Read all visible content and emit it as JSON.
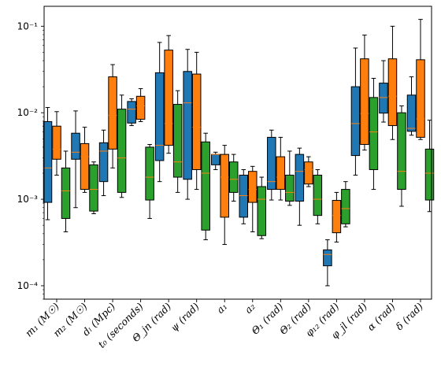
{
  "chart_data": {
    "type": "boxplot",
    "title": "",
    "xlabel": "",
    "ylabel": "",
    "yscale": "log",
    "ylim": [
      7e-05,
      0.17
    ],
    "y_ticks": [
      {
        "value": 0.1,
        "label": "10⁻¹"
      },
      {
        "value": 0.01,
        "label": "10⁻²"
      },
      {
        "value": 0.001,
        "label": "10⁻³"
      },
      {
        "value": 0.0001,
        "label": "10⁻⁴"
      }
    ],
    "categories": [
      "m₁ (M☉)",
      "m₂ (M☉)",
      "dₗ (Mpc)",
      "t₀ (seconds)",
      "Θ_jn (rad)",
      "ψ (rad)",
      "a₁",
      "a₂",
      "Θ₁ (rad)",
      "Θ₂ (rad)",
      "φ₁₂ (rad)",
      "φ_jl (rad)",
      "α (rad)",
      "δ (rad)"
    ],
    "colors": {
      "blue": "#1f77b4",
      "orange": "#ff7f0e",
      "green": "#2ca02c",
      "median": "#ff7f0e"
    },
    "series": [
      {
        "color": "blue",
        "boxes": [
          {
            "min": 0.00058,
            "q1": 0.00092,
            "median": 0.0023,
            "q3": 0.0079,
            "max": 0.0115
          },
          {
            "min": 0.0008,
            "q1": 0.0029,
            "median": 0.0035,
            "q3": 0.0058,
            "max": 0.0105
          },
          {
            "min": 0.0011,
            "q1": 0.0016,
            "median": 0.0036,
            "q3": 0.0045,
            "max": 0.0063
          },
          {
            "min": 0.0071,
            "q1": 0.0076,
            "median": 0.011,
            "q3": 0.0135,
            "max": 0.0145
          },
          {
            "min": 0.0016,
            "q1": 0.0028,
            "median": 0.0042,
            "q3": 0.029,
            "max": 0.065
          },
          {
            "min": 0.001,
            "q1": 0.0017,
            "median": 0.013,
            "q3": 0.03,
            "max": 0.054
          },
          {
            "min": 0.0022,
            "q1": 0.0025,
            "median": 0.0033,
            "q3": 0.0033,
            "max": 0.0035
          },
          {
            "min": 0.00052,
            "q1": 0.00062,
            "median": 0.0011,
            "q3": 0.0019,
            "max": 0.0022
          },
          {
            "min": 0.00098,
            "q1": 0.0013,
            "median": 0.0016,
            "q3": 0.0052,
            "max": 0.0063
          },
          {
            "min": 0.0005,
            "q1": 0.00095,
            "median": 0.0021,
            "q3": 0.0033,
            "max": 0.0039
          },
          {
            "min": 0.0001,
            "q1": 0.00017,
            "median": 0.00023,
            "q3": 0.00026,
            "max": 0.00034
          },
          {
            "min": 0.0019,
            "q1": 0.0032,
            "median": 0.0075,
            "q3": 0.02,
            "max": 0.056
          },
          {
            "min": 0.0078,
            "q1": 0.0099,
            "median": 0.015,
            "q3": 0.022,
            "max": 0.04
          },
          {
            "min": 0.0055,
            "q1": 0.0061,
            "median": 0.0066,
            "q3": 0.016,
            "max": 0.026
          }
        ]
      },
      {
        "color": "orange",
        "boxes": [
          {
            "min": 0.0019,
            "q1": 0.0029,
            "median": 0.0038,
            "q3": 0.007,
            "max": 0.0103
          },
          {
            "min": 0.0012,
            "q1": 0.0013,
            "median": 0.0031,
            "q3": 0.0044,
            "max": 0.0068
          },
          {
            "min": 0.0023,
            "q1": 0.0038,
            "median": 0.0093,
            "q3": 0.026,
            "max": 0.036
          },
          {
            "min": 0.0079,
            "q1": 0.0084,
            "median": 0.012,
            "q3": 0.0155,
            "max": 0.019
          },
          {
            "min": 0.0034,
            "q1": 0.0042,
            "median": 0.0075,
            "q3": 0.053,
            "max": 0.078
          },
          {
            "min": 0.0013,
            "q1": 0.0022,
            "median": 0.0068,
            "q3": 0.028,
            "max": 0.05
          },
          {
            "min": 0.0003,
            "q1": 0.00062,
            "median": 0.0018,
            "q3": 0.0033,
            "max": 0.0042
          },
          {
            "min": 0.00042,
            "q1": 0.00092,
            "median": 0.0013,
            "q3": 0.0021,
            "max": 0.0024
          },
          {
            "min": 0.00098,
            "q1": 0.0013,
            "median": 0.0018,
            "q3": 0.0031,
            "max": 0.0052
          },
          {
            "min": 0.0014,
            "q1": 0.0015,
            "median": 0.0022,
            "q3": 0.0027,
            "max": 0.0031
          },
          {
            "min": 0.00032,
            "q1": 0.00041,
            "median": 0.00065,
            "q3": 0.00097,
            "max": 0.0012
          },
          {
            "min": 0.0037,
            "q1": 0.0043,
            "median": 0.0098,
            "q3": 0.042,
            "max": 0.079
          },
          {
            "min": 0.0049,
            "q1": 0.0071,
            "median": 0.0155,
            "q3": 0.042,
            "max": 0.1
          },
          {
            "min": 0.0049,
            "q1": 0.0052,
            "median": 0.0085,
            "q3": 0.041,
            "max": 0.12
          }
        ]
      },
      {
        "color": "green",
        "boxes": [
          {
            "min": 0.00042,
            "q1": 0.0006,
            "median": 0.00125,
            "q3": 0.0023,
            "max": 0.0036
          },
          {
            "min": 0.00068,
            "q1": 0.00073,
            "median": 0.0013,
            "q3": 0.0025,
            "max": 0.0027
          },
          {
            "min": 0.00105,
            "q1": 0.0012,
            "median": 0.003,
            "q3": 0.011,
            "max": 0.016
          },
          {
            "min": 0.0006,
            "q1": 0.00098,
            "median": 0.0018,
            "q3": 0.004,
            "max": 0.0043
          },
          {
            "min": 0.0012,
            "q1": 0.0018,
            "median": 0.0027,
            "q3": 0.0125,
            "max": 0.018
          },
          {
            "min": 0.00034,
            "q1": 0.00044,
            "median": 0.002,
            "q3": 0.0046,
            "max": 0.0058
          },
          {
            "min": 0.00095,
            "q1": 0.0012,
            "median": 0.0017,
            "q3": 0.0027,
            "max": 0.0033
          },
          {
            "min": 0.00035,
            "q1": 0.00038,
            "median": 0.001,
            "q3": 0.0014,
            "max": 0.0018
          },
          {
            "min": 0.00085,
            "q1": 0.00095,
            "median": 0.0012,
            "q3": 0.0019,
            "max": 0.0036
          },
          {
            "min": 0.00052,
            "q1": 0.00065,
            "median": 0.001,
            "q3": 0.0019,
            "max": 0.0022
          },
          {
            "min": 0.00048,
            "q1": 0.00052,
            "median": 0.00078,
            "q3": 0.0013,
            "max": 0.0016
          },
          {
            "min": 0.0013,
            "q1": 0.0022,
            "median": 0.006,
            "q3": 0.015,
            "max": 0.025
          },
          {
            "min": 0.00083,
            "q1": 0.0013,
            "median": 0.0021,
            "q3": 0.01,
            "max": 0.012
          },
          {
            "min": 0.00072,
            "q1": 0.00098,
            "median": 0.002,
            "q3": 0.0038,
            "max": 0.0082
          }
        ]
      }
    ]
  }
}
